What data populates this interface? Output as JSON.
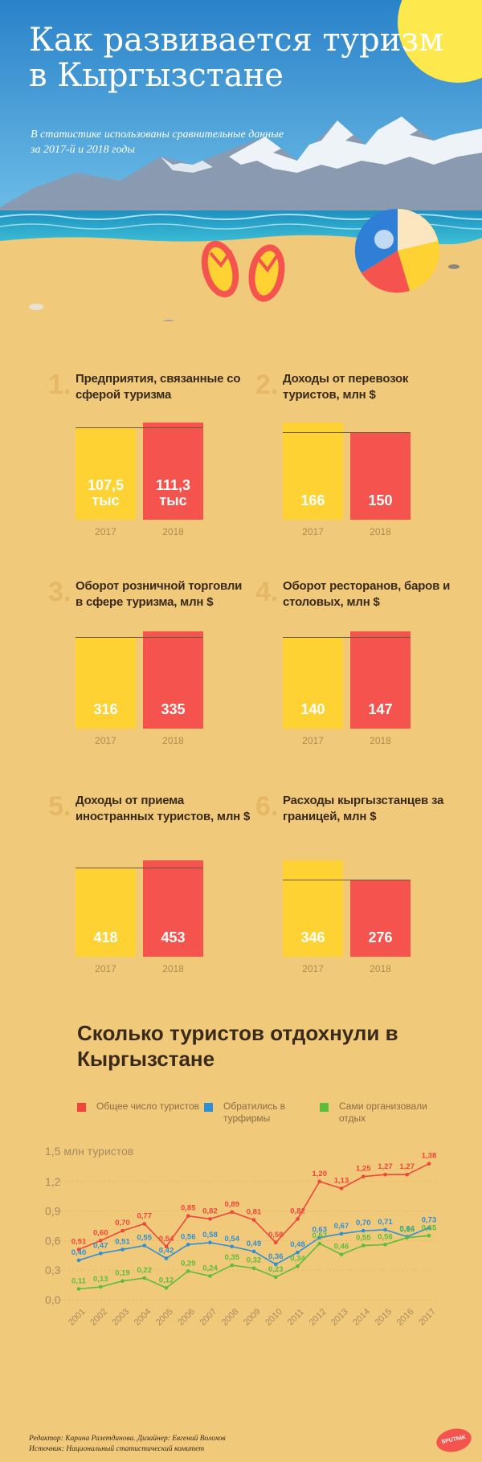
{
  "header": {
    "title": "Как развивается туризм в Кыргызстане",
    "subtitle": "В статистике использованы сравнительные данные за 2017-й и 2018 годы"
  },
  "bar_panels": [
    {
      "num": "1.",
      "title": "Предприятия, связанные со сферой туризма",
      "labels": [
        "107,5 тыс",
        "111,3 тыс"
      ],
      "years": [
        "2017",
        "2018"
      ],
      "values": [
        107.5,
        111.3
      ]
    },
    {
      "num": "2.",
      "title": "Доходы от перевозок туристов, млн $",
      "labels": [
        "166",
        "150"
      ],
      "years": [
        "2017",
        "2018"
      ],
      "values": [
        166,
        150
      ]
    },
    {
      "num": "3.",
      "title": "Оборот розничной торговли в сфере туризма, млн $",
      "labels": [
        "316",
        "335"
      ],
      "years": [
        "2017",
        "2018"
      ],
      "values": [
        316,
        335
      ]
    },
    {
      "num": "4.",
      "title": "Оборот ресторанов, баров и столовых, млн $",
      "labels": [
        "140",
        "147"
      ],
      "years": [
        "2017",
        "2018"
      ],
      "values": [
        140,
        147
      ]
    },
    {
      "num": "5.",
      "title": "Доходы от приема иностранных туристов, млн $",
      "labels": [
        "418",
        "453"
      ],
      "years": [
        "2017",
        "2018"
      ],
      "values": [
        418,
        453
      ]
    },
    {
      "num": "6.",
      "title": "Расходы кыргызстанцев за границей, млн $",
      "labels": [
        "346",
        "276"
      ],
      "years": [
        "2017",
        "2018"
      ],
      "values": [
        346,
        276
      ]
    }
  ],
  "chart_data": {
    "type": "line",
    "title": "Сколько туристов отдохнули в Кыргызстане",
    "ylabel": "1,5 млн туристов",
    "ylim": [
      0,
      1.5
    ],
    "yticks": [
      "0,0",
      "0,3",
      "0,6",
      "0,9",
      "1,2"
    ],
    "x": [
      "2001",
      "2002",
      "2003",
      "2004",
      "2005",
      "2006",
      "2007",
      "2008",
      "2009",
      "2010",
      "2011",
      "2012",
      "2013",
      "2014",
      "2015",
      "2016",
      "2017"
    ],
    "series": [
      {
        "name": "Общее число туристов",
        "color": "#f0453a",
        "values": [
          0.51,
          0.6,
          0.7,
          0.77,
          0.54,
          0.85,
          0.82,
          0.89,
          0.81,
          0.58,
          0.82,
          1.2,
          1.13,
          1.25,
          1.27,
          1.27,
          1.38
        ],
        "labels": [
          "0,51",
          "0,60",
          "0,70",
          "0,77",
          "0,54",
          "0,85",
          "0,82",
          "0,89",
          "0,81",
          "0,58",
          "0,82",
          "1,20",
          "1,13",
          "1,25",
          "1,27",
          "1,27",
          "1,38"
        ]
      },
      {
        "name": "Обратились в турфирмы",
        "color": "#2f8fd6",
        "values": [
          0.4,
          0.47,
          0.51,
          0.55,
          0.42,
          0.56,
          0.58,
          0.54,
          0.49,
          0.36,
          0.48,
          0.63,
          0.67,
          0.7,
          0.71,
          0.64,
          0.73
        ],
        "labels": [
          "0,40",
          "0,47",
          "0,51",
          "0,55",
          "0,42",
          "0,56",
          "0,58",
          "0,54",
          "0,49",
          "0,36",
          "0,48",
          "0,63",
          "0,67",
          "0,70",
          "0,71",
          "0,64",
          "0,73"
        ]
      },
      {
        "name": "Сами организовали отдых",
        "color": "#5bbd3a",
        "values": [
          0.11,
          0.13,
          0.19,
          0.22,
          0.12,
          0.29,
          0.24,
          0.35,
          0.32,
          0.23,
          0.34,
          0.57,
          0.46,
          0.55,
          0.56,
          0.63,
          0.65
        ],
        "labels": [
          "0,11",
          "0,13",
          "0,19",
          "0,22",
          "0,12",
          "0,29",
          "0,24",
          "0,35",
          "0,32",
          "0,23",
          "0,34",
          "0,57",
          "0,46",
          "0,55",
          "0,56",
          "0,63",
          "0,65"
        ]
      }
    ]
  },
  "footer": {
    "credits": "Редактор: Карина Разетдинова. Дизайнер: Евгений Волохов",
    "source": "Источник: Национальный статистический комитет",
    "logo": "SPUTNIK"
  }
}
